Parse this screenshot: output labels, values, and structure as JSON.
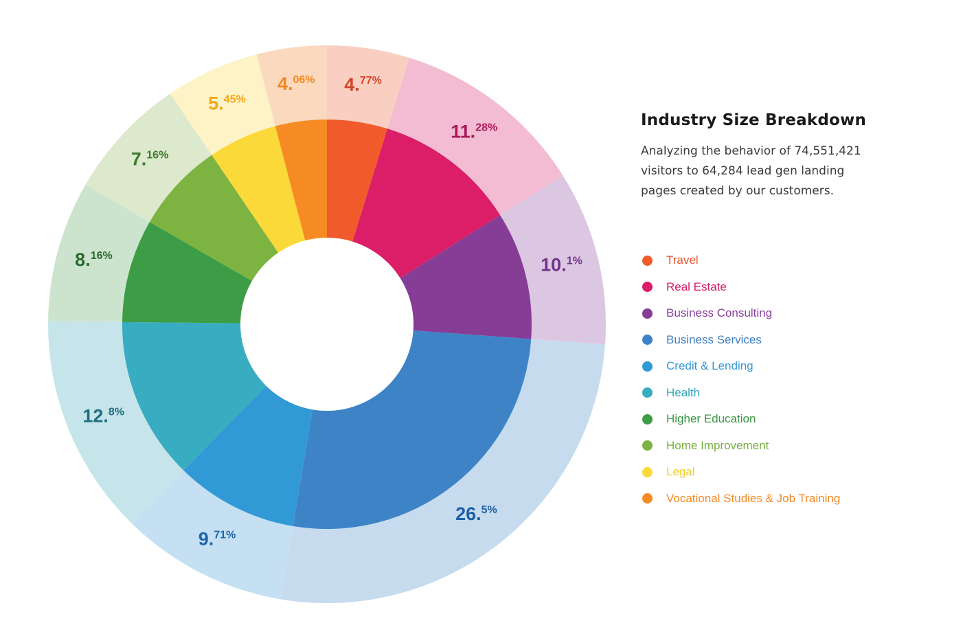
{
  "chart_data": {
    "type": "pie",
    "title": "Industry Size Breakdown",
    "description": "Analyzing the behavior of 74,551,421 visitors to 64,284 lead gen landing pages created by our customers.",
    "slices": [
      {
        "name": "Travel",
        "value": 4.77,
        "int_label": "4.",
        "frac_label": "77%",
        "color": "#f15a2b",
        "light_color": "#f9cfc2",
        "text_color": "#d2462a"
      },
      {
        "name": "Real Estate",
        "value": 11.28,
        "int_label": "11.",
        "frac_label": "28%",
        "color": "#dc1d68",
        "light_color": "#f3bcd2",
        "text_color": "#a81a5a"
      },
      {
        "name": "Business Consulting",
        "value": 10.1,
        "int_label": "10.",
        "frac_label": "1%",
        "color": "#863d96",
        "light_color": "#dcc7e2",
        "text_color": "#74338a"
      },
      {
        "name": "Business Services",
        "value": 26.5,
        "int_label": "26.",
        "frac_label": "5%",
        "color": "#3d83c6",
        "light_color": "#c6dcee",
        "text_color": "#1f5fa6"
      },
      {
        "name": "Credit & Lending",
        "value": 9.71,
        "int_label": "9.",
        "frac_label": "71%",
        "color": "#3199d6",
        "light_color": "#c4e0f2",
        "text_color": "#1d66a8"
      },
      {
        "name": "Health",
        "value": 12.8,
        "int_label": "12.",
        "frac_label": "8%",
        "color": "#38acc0",
        "light_color": "#c5e5ea",
        "text_color": "#1f6f80"
      },
      {
        "name": "Higher Education",
        "value": 8.16,
        "int_label": "8.",
        "frac_label": "16%",
        "color": "#3d9c46",
        "light_color": "#cce4cd",
        "text_color": "#2a6a30"
      },
      {
        "name": "Home Improvement",
        "value": 7.16,
        "int_label": "7.",
        "frac_label": "16%",
        "color": "#7db341",
        "light_color": "#dce9cd",
        "text_color": "#3d7a2a"
      },
      {
        "name": "Legal",
        "value": 5.45,
        "int_label": "5.",
        "frac_label": "45%",
        "color": "#fbd938",
        "light_color": "#fdf3c6",
        "text_color": "#f3a71b"
      },
      {
        "name": "Vocational Studies & Job Training",
        "value": 4.06,
        "int_label": "4.",
        "frac_label": "06%",
        "color": "#f68b24",
        "light_color": "#fbd9bf",
        "text_color": "#f0891f"
      }
    ],
    "legend": [
      {
        "label": "Travel",
        "dot_color": "#f15a2b",
        "text_color": "#e8532a"
      },
      {
        "label": "Real Estate",
        "dot_color": "#dc1d68",
        "text_color": "#d31a63"
      },
      {
        "label": "Business Consulting",
        "dot_color": "#863d96",
        "text_color": "#8a3e9a"
      },
      {
        "label": "Business Services",
        "dot_color": "#3d83c6",
        "text_color": "#3e7fc0"
      },
      {
        "label": "Credit & Lending",
        "dot_color": "#3199d6",
        "text_color": "#3497d2"
      },
      {
        "label": "Health",
        "dot_color": "#38acc0",
        "text_color": "#33a7ba"
      },
      {
        "label": "Higher Education",
        "dot_color": "#3d9c46",
        "text_color": "#3a9642"
      },
      {
        "label": "Home Improvement",
        "dot_color": "#7db341",
        "text_color": "#78ad3e"
      },
      {
        "label": "Legal",
        "dot_color": "#fbd938",
        "text_color": "#f3cd27"
      },
      {
        "label": "Vocational Studies & Job Training",
        "dot_color": "#f68b24",
        "text_color": "#f28a23"
      }
    ],
    "legend_position": "right"
  }
}
